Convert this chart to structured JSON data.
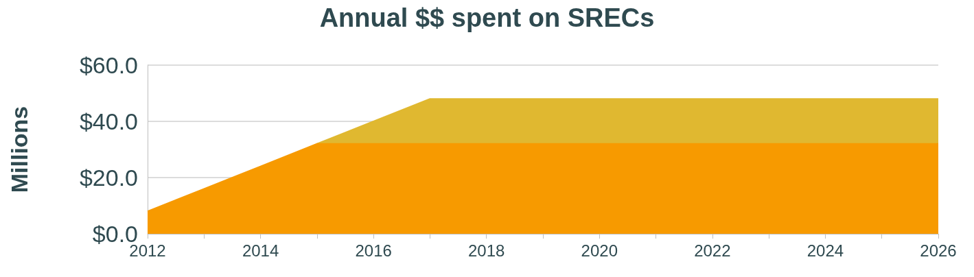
{
  "chart_data": {
    "type": "area",
    "title": "Annual $$ spent on SRECs",
    "ylabel": "Millions",
    "stacked": true,
    "x": [
      2012,
      2013,
      2014,
      2015,
      2016,
      2017,
      2018,
      2019,
      2020,
      2021,
      2022,
      2023,
      2024,
      2025,
      2026
    ],
    "series": [
      {
        "color": "#f79a00",
        "values": [
          8,
          16,
          24,
          32,
          32,
          32,
          32,
          32,
          32,
          32,
          32,
          32,
          32,
          32,
          32
        ]
      },
      {
        "color": "#e0b830",
        "values": [
          null,
          null,
          null,
          0,
          8,
          16,
          16,
          16,
          16,
          16,
          16,
          16,
          16,
          16,
          16
        ]
      }
    ],
    "xlim": [
      2012,
      2026
    ],
    "xticks": [
      2012,
      {
        "value": 2013,
        "label": null
      },
      2014,
      {
        "value": 2015,
        "label": null
      },
      2016,
      {
        "value": 2017,
        "label": null
      },
      2018,
      {
        "value": 2019,
        "label": null
      },
      2020,
      {
        "value": 2021,
        "label": null
      },
      2022,
      {
        "value": 2023,
        "label": null
      },
      2024,
      {
        "value": 2025,
        "label": null
      },
      2026
    ],
    "ylim": [
      0,
      60
    ],
    "yticks": [
      {
        "value": 0,
        "label": "$0.0"
      },
      {
        "value": 20,
        "label": "$20.0"
      },
      {
        "value": 40,
        "label": "$40.0"
      },
      {
        "value": 60,
        "label": "$60.0"
      }
    ],
    "grid": "y",
    "marker": "none"
  }
}
